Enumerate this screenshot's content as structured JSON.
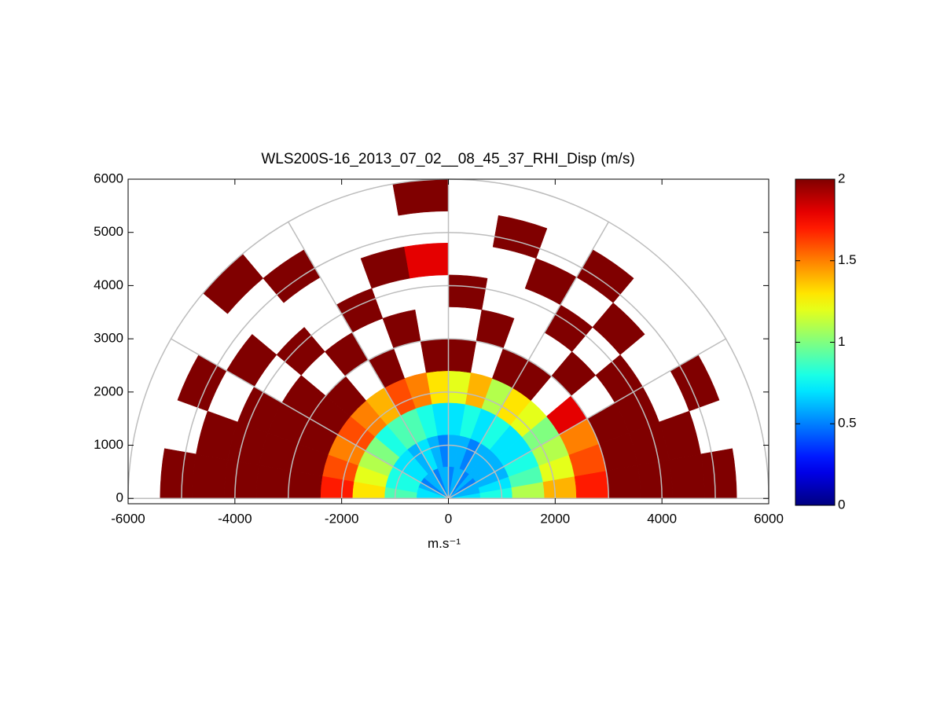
{
  "chart_data": {
    "type": "polar_heatmap",
    "title": "WLS200S-16_2013_07_02__08_45_37_RHI_Disp (m/s)",
    "x_label": "m.s⁻¹",
    "angles": [
      5,
      15,
      25,
      35,
      45,
      55,
      65,
      75,
      85,
      95,
      105,
      115,
      125,
      135,
      145,
      155,
      165,
      175
    ],
    "angle_width": 10,
    "ranges": [
      300,
      900,
      1500,
      2100,
      2700,
      3300,
      3900,
      4500,
      5100,
      5700
    ],
    "range_width": 600,
    "values": [
      [
        0.7,
        0.8,
        1.1,
        1.4,
        1.7,
        2,
        2,
        2,
        2,
        null
      ],
      [
        0.6,
        0.7,
        0.9,
        1.2,
        1.6,
        2,
        2,
        2,
        null,
        null
      ],
      [
        0.6,
        0.6,
        0.8,
        1.1,
        1.5,
        2,
        2,
        null,
        2,
        null
      ],
      [
        0.5,
        0.6,
        0.7,
        1.0,
        1.8,
        null,
        2,
        null,
        null,
        null
      ],
      [
        0.6,
        0.6,
        0.7,
        1.2,
        null,
        2,
        null,
        2,
        null,
        null
      ],
      [
        0.5,
        0.6,
        0.8,
        1.3,
        2,
        null,
        2,
        null,
        2,
        null
      ],
      [
        0.6,
        0.5,
        0.7,
        1.1,
        2,
        null,
        null,
        2,
        null,
        null
      ],
      [
        0.6,
        0.6,
        0.8,
        1.4,
        null,
        2,
        null,
        null,
        2,
        null
      ],
      [
        0.5,
        0.6,
        0.7,
        1.2,
        2,
        null,
        2,
        null,
        null,
        null
      ],
      [
        0.6,
        0.5,
        0.7,
        1.3,
        2,
        null,
        null,
        1.8,
        null,
        2
      ],
      [
        0.6,
        0.6,
        0.8,
        1.5,
        null,
        2,
        null,
        2,
        null,
        null
      ],
      [
        0.5,
        0.7,
        0.9,
        1.6,
        2,
        null,
        2,
        null,
        null,
        null
      ],
      [
        0.6,
        0.6,
        0.9,
        1.4,
        null,
        2,
        null,
        null,
        2,
        null
      ],
      [
        0.6,
        0.7,
        0.8,
        1.5,
        2,
        null,
        2,
        null,
        null,
        2
      ],
      [
        0.5,
        0.7,
        1.0,
        1.6,
        2,
        2,
        null,
        2,
        null,
        null
      ],
      [
        0.6,
        0.8,
        1.1,
        1.5,
        2,
        2,
        2,
        null,
        2,
        null
      ],
      [
        0.7,
        0.8,
        1.2,
        1.6,
        2,
        2,
        2,
        2,
        null,
        null
      ],
      [
        0.7,
        0.9,
        1.3,
        1.7,
        2,
        2,
        2,
        2,
        2,
        null
      ]
    ],
    "colormap": "jet",
    "clim": [
      0,
      2
    ],
    "cticks": [
      0,
      0.5,
      1,
      1.5,
      2
    ],
    "xlim": [
      -6000,
      6000
    ],
    "ylim": [
      -100,
      6000
    ],
    "xticks": [
      -6000,
      -4000,
      -2000,
      0,
      2000,
      4000,
      6000
    ],
    "yticks": [
      0,
      1000,
      2000,
      3000,
      4000,
      5000,
      6000
    ],
    "polar_grid": {
      "ranges": [
        1000,
        2000,
        3000,
        4000,
        5000,
        6000
      ],
      "angles": [
        0,
        30,
        60,
        90,
        120,
        150,
        180
      ]
    }
  }
}
